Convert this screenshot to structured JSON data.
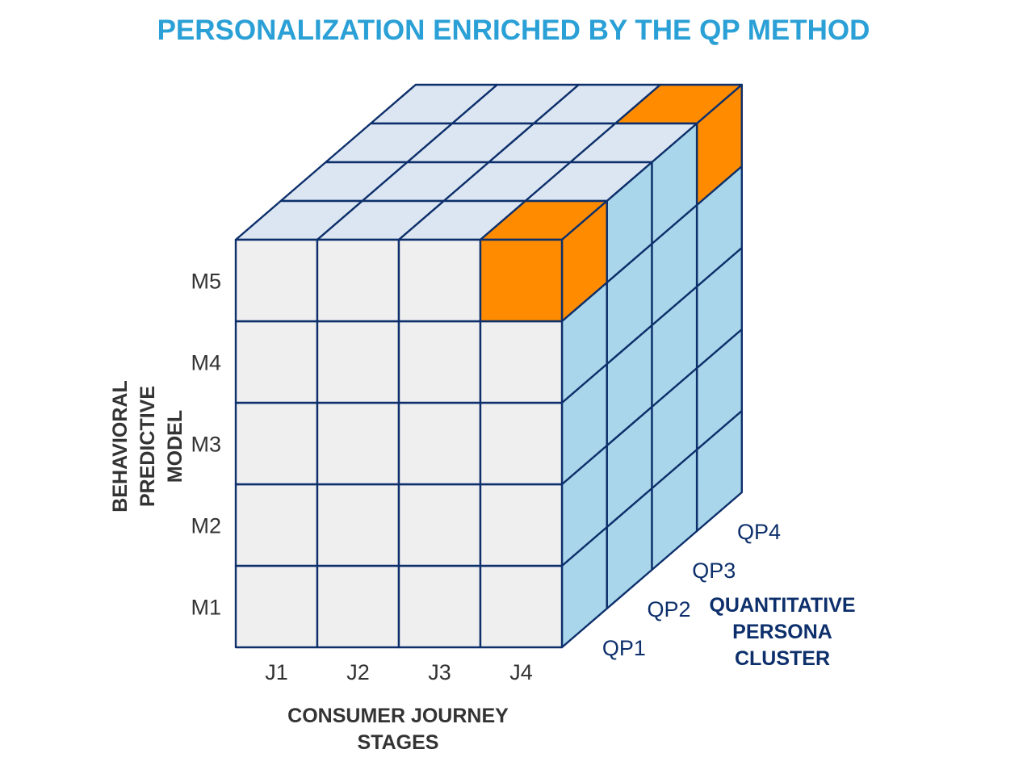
{
  "title": "PERSONALIZATION ENRICHED BY THE QP METHOD",
  "colors": {
    "title": "#2aa0d6",
    "grid_line": "#0d2f6b",
    "front_face": "#efefef",
    "top_face": "#dce6f2",
    "side_face": "#a9d6ea",
    "highlight": "#ff8c00",
    "qp_axis_text": "#0d2f6b",
    "label_text": "#333333"
  },
  "axes": {
    "vertical": {
      "title_lines": [
        "BEHAVIORAL",
        "PREDICTIVE",
        "MODEL"
      ],
      "levels": [
        "M1",
        "M2",
        "M3",
        "M4",
        "M5"
      ]
    },
    "horizontal": {
      "title_lines": [
        "CONSUMER JOURNEY",
        "STAGES"
      ],
      "stages": [
        "J1",
        "J2",
        "J3",
        "J4"
      ]
    },
    "depth": {
      "title_lines": [
        "QUANTITATIVE",
        "PERSONA",
        "CLUSTER"
      ],
      "clusters": [
        "QP1",
        "QP2",
        "QP3",
        "QP4"
      ]
    }
  },
  "highlighted_cells": [
    {
      "stage": "J4",
      "level": "M5",
      "cluster": "QP1"
    },
    {
      "stage": "J4",
      "level": "M5",
      "cluster": "QP4"
    }
  ]
}
